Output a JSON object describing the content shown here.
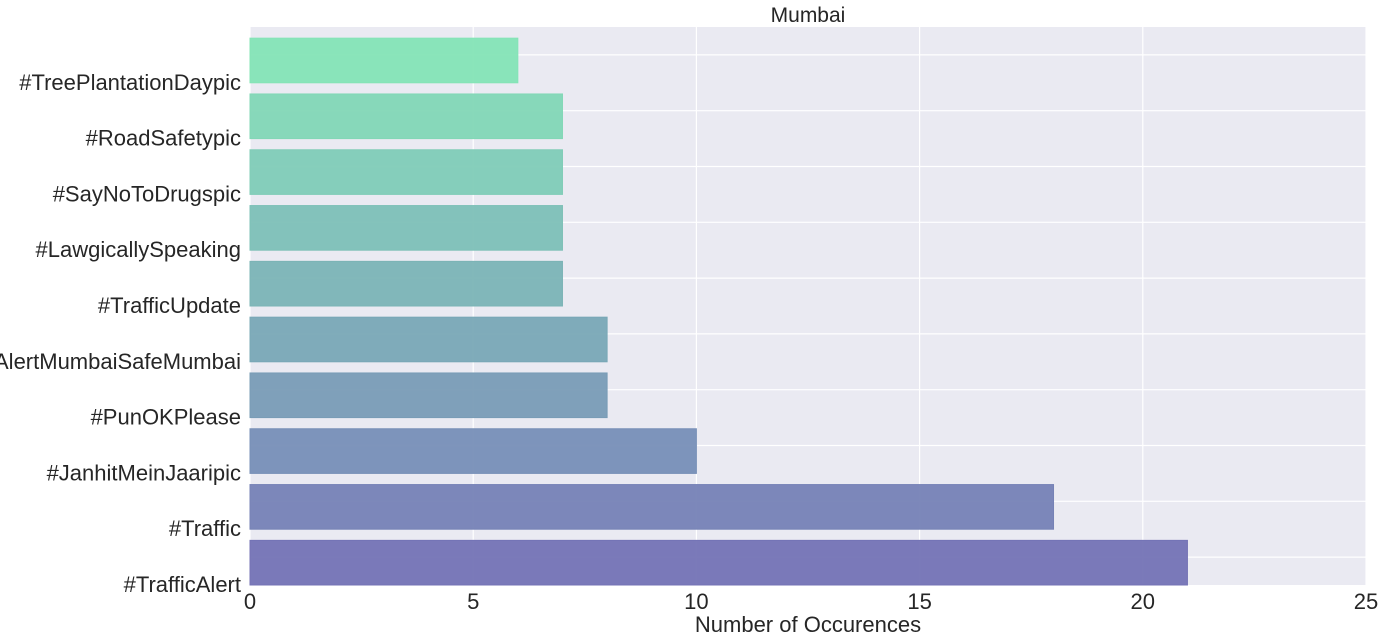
{
  "chart_data": {
    "type": "bar",
    "orientation": "horizontal",
    "title": "Mumbai",
    "xlabel": "Number of Occurences",
    "ylabel": "",
    "xlim": [
      0,
      25
    ],
    "xticks": [
      0,
      5,
      10,
      15,
      20,
      25
    ],
    "grid": true,
    "categories": [
      "#TrafficAlert",
      "#Traffic",
      "#JanhitMeinJaaripic",
      "#PunOKPlease",
      "#AlertMumbaiSafeMumbai",
      "#TrafficUpdate",
      "#LawgicallySpeaking",
      "#SayNoToDrugspic",
      "#RoadSafetypic",
      "#TreePlantationDaypic"
    ],
    "values": [
      21,
      18,
      10,
      8,
      8,
      7,
      7,
      7,
      7,
      6
    ],
    "colors": [
      "#7473b5",
      "#7682b6",
      "#778fb7",
      "#799cb6",
      "#79a8b6",
      "#7bb4b6",
      "#7dc0b7",
      "#80ccb7",
      "#82d7b6",
      "#84e4b6"
    ],
    "background_color": "#eaeaf2",
    "grid_color": "#ffffff"
  }
}
